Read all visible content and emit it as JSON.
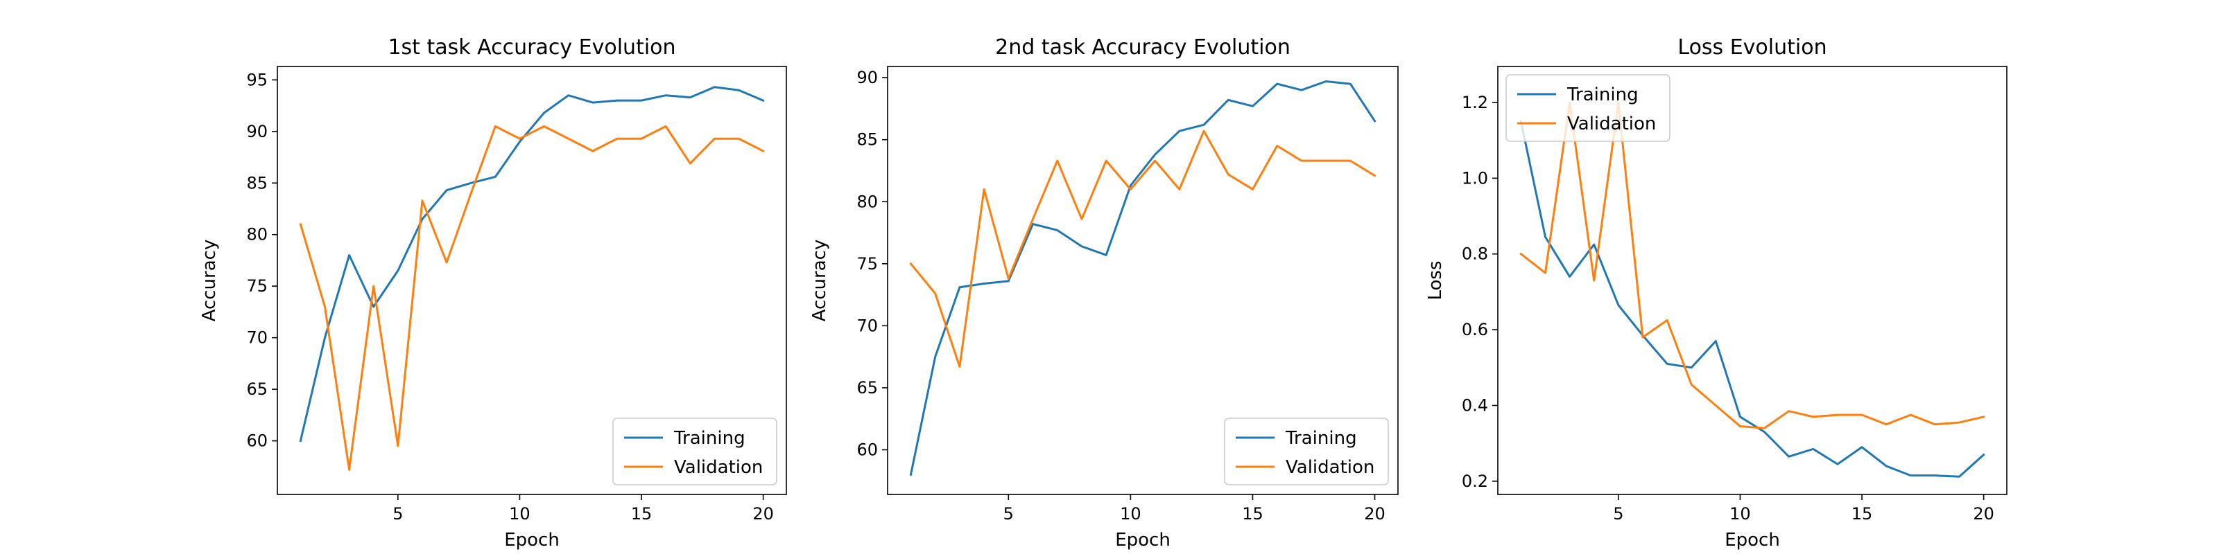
{
  "chart_data": [
    {
      "type": "line",
      "title": "1st task Accuracy Evolution",
      "xlabel": "Epoch",
      "ylabel": "Accuracy",
      "xlim": [
        0.05,
        20.95
      ],
      "ylim": [
        54.8,
        96.3
      ],
      "xticks": [
        5,
        10,
        15,
        20
      ],
      "yticks": [
        60,
        65,
        70,
        75,
        80,
        85,
        90,
        95
      ],
      "legend_loc": "lower-right",
      "x": [
        1,
        2,
        3,
        4,
        5,
        6,
        7,
        8,
        9,
        10,
        11,
        12,
        13,
        14,
        15,
        16,
        17,
        18,
        19,
        20
      ],
      "series": [
        {
          "name": "Training",
          "color": "#1f77b4",
          "values": [
            60.0,
            70.0,
            78.0,
            73.0,
            76.5,
            81.5,
            84.3,
            85.0,
            85.6,
            89.0,
            91.8,
            93.5,
            92.8,
            93.0,
            93.0,
            93.5,
            93.3,
            94.3,
            94.0,
            93.0
          ]
        },
        {
          "name": "Validation",
          "color": "#ff7f0e",
          "values": [
            81.0,
            73.0,
            57.2,
            75.0,
            59.5,
            83.3,
            77.3,
            84.0,
            90.5,
            89.3,
            90.5,
            89.3,
            88.1,
            89.3,
            89.3,
            90.5,
            86.9,
            89.3,
            89.3,
            88.1
          ]
        }
      ]
    },
    {
      "type": "line",
      "title": "2nd task Accuracy Evolution",
      "xlabel": "Epoch",
      "ylabel": "Accuracy",
      "xlim": [
        0.05,
        20.95
      ],
      "ylim": [
        56.4,
        90.9
      ],
      "xticks": [
        5,
        10,
        15,
        20
      ],
      "yticks": [
        60,
        65,
        70,
        75,
        80,
        85,
        90
      ],
      "legend_loc": "lower-right",
      "x": [
        1,
        2,
        3,
        4,
        5,
        6,
        7,
        8,
        9,
        10,
        11,
        12,
        13,
        14,
        15,
        16,
        17,
        18,
        19,
        20
      ],
      "series": [
        {
          "name": "Training",
          "color": "#1f77b4",
          "values": [
            58.0,
            67.5,
            73.1,
            73.4,
            73.6,
            78.2,
            77.7,
            76.4,
            75.7,
            81.3,
            83.8,
            85.7,
            86.2,
            88.2,
            87.7,
            89.5,
            89.0,
            89.7,
            89.5,
            86.5
          ]
        },
        {
          "name": "Validation",
          "color": "#ff7f0e",
          "values": [
            75.0,
            72.6,
            66.7,
            81.0,
            73.8,
            78.6,
            83.3,
            78.6,
            83.3,
            81.0,
            83.3,
            81.0,
            85.7,
            82.2,
            81.0,
            84.5,
            83.3,
            83.3,
            83.3,
            82.1
          ]
        }
      ]
    },
    {
      "type": "line",
      "title": "Loss Evolution",
      "xlabel": "Epoch",
      "ylabel": "Loss",
      "xlim": [
        0.05,
        20.95
      ],
      "ylim": [
        0.165,
        1.295
      ],
      "xticks": [
        5,
        10,
        15,
        20
      ],
      "yticks": [
        0.2,
        0.4,
        0.6,
        0.8,
        1.0,
        1.2
      ],
      "ytick_decimals": 1,
      "legend_loc": "upper-left",
      "x": [
        1,
        2,
        3,
        4,
        5,
        6,
        7,
        8,
        9,
        10,
        11,
        12,
        13,
        14,
        15,
        16,
        17,
        18,
        19,
        20
      ],
      "series": [
        {
          "name": "Training",
          "color": "#1f77b4",
          "values": [
            1.15,
            0.845,
            0.74,
            0.825,
            0.665,
            0.585,
            0.51,
            0.5,
            0.57,
            0.37,
            0.33,
            0.265,
            0.285,
            0.245,
            0.29,
            0.24,
            0.215,
            0.215,
            0.212,
            0.27
          ]
        },
        {
          "name": "Validation",
          "color": "#ff7f0e",
          "values": [
            0.8,
            0.75,
            1.2,
            0.73,
            1.2,
            0.58,
            0.625,
            0.455,
            0.4,
            0.345,
            0.34,
            0.385,
            0.37,
            0.375,
            0.375,
            0.35,
            0.375,
            0.35,
            0.355,
            0.37
          ]
        }
      ]
    }
  ]
}
